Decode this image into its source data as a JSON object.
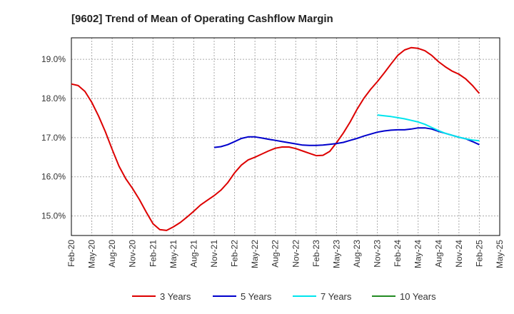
{
  "chart_data": {
    "type": "line",
    "title": "[9602]  Trend of Mean of Operating Cashflow Margin",
    "xlabel": "",
    "ylabel": "",
    "ylim": [
      14.5,
      19.55
    ],
    "y_ticks": [
      15.0,
      16.0,
      17.0,
      18.0,
      19.0
    ],
    "y_tick_labels": [
      "15.0%",
      "16.0%",
      "17.0%",
      "18.0%",
      "19.0%"
    ],
    "x_tick_labels": [
      "Feb-20",
      "May-20",
      "Aug-20",
      "Nov-20",
      "Feb-21",
      "May-21",
      "Aug-21",
      "Nov-21",
      "Feb-22",
      "May-22",
      "Aug-22",
      "Nov-22",
      "Feb-23",
      "May-23",
      "Aug-23",
      "Nov-23",
      "Feb-24",
      "May-24",
      "Aug-24",
      "Nov-24",
      "Feb-25",
      "May-25"
    ],
    "grid": true,
    "legend_position": "bottom",
    "series": [
      {
        "name": "3 Years",
        "color": "#dd0000",
        "start_month_index": 0,
        "values": [
          18.37,
          18.33,
          18.18,
          17.9,
          17.55,
          17.15,
          16.7,
          16.27,
          15.95,
          15.7,
          15.42,
          15.1,
          14.8,
          14.65,
          14.63,
          14.72,
          14.83,
          14.97,
          15.12,
          15.28,
          15.4,
          15.52,
          15.66,
          15.85,
          16.1,
          16.3,
          16.43,
          16.5,
          16.58,
          16.66,
          16.73,
          16.76,
          16.76,
          16.72,
          16.66,
          16.6,
          16.54,
          16.55,
          16.65,
          16.87,
          17.12,
          17.4,
          17.72,
          18.0,
          18.23,
          18.43,
          18.65,
          18.88,
          19.1,
          19.24,
          19.3,
          19.28,
          19.22,
          19.1,
          18.94,
          18.81,
          18.7,
          18.62,
          18.5,
          18.33,
          18.13
        ]
      },
      {
        "name": "5 Years",
        "color": "#0000cc",
        "start_month_index": 21,
        "values": [
          16.75,
          16.77,
          16.82,
          16.9,
          16.98,
          17.02,
          17.02,
          16.99,
          16.96,
          16.93,
          16.9,
          16.87,
          16.84,
          16.81,
          16.8,
          16.8,
          16.81,
          16.83,
          16.85,
          16.88,
          16.93,
          16.98,
          17.04,
          17.09,
          17.14,
          17.17,
          17.19,
          17.2,
          17.2,
          17.22,
          17.25,
          17.25,
          17.22,
          17.16,
          17.11,
          17.06,
          17.01,
          16.97,
          16.9,
          16.82
        ]
      },
      {
        "name": "7 Years",
        "color": "#00e5ee",
        "start_month_index": 45,
        "values": [
          17.58,
          17.56,
          17.54,
          17.51,
          17.48,
          17.44,
          17.4,
          17.34,
          17.26,
          17.18,
          17.11,
          17.06,
          17.01,
          16.97,
          16.94,
          16.92
        ]
      },
      {
        "name": "10 Years",
        "color": "#228b22",
        "start_month_index": 0,
        "values": []
      }
    ]
  }
}
